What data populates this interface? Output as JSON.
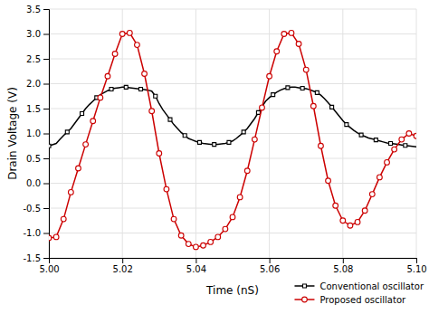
{
  "chart_data": {
    "type": "line",
    "xlabel": "Time (nS)",
    "ylabel": "Drain Voltage (V)",
    "xlim": [
      5.0,
      5.1
    ],
    "ylim": [
      -1.5,
      3.5
    ],
    "xticks": [
      {
        "value": 5.0,
        "label": "5.00"
      },
      5.02,
      5.04,
      5.06,
      5.08,
      {
        "value": 5.1,
        "label": "5.10"
      }
    ],
    "yticks": [
      -1.5,
      {
        "value": -1.0,
        "label": "-1.0"
      },
      -0.5,
      {
        "value": 0.0,
        "label": "0.0"
      },
      0.5,
      {
        "value": 1.0,
        "label": "1.0"
      },
      1.5,
      {
        "value": 2.0,
        "label": "2.0"
      },
      2.5,
      {
        "value": 3.0,
        "label": "3.0"
      },
      3.5
    ],
    "grid": true,
    "legend": "lower right",
    "series": [
      {
        "name": "Conventional oscillator",
        "color": "#000000",
        "marker": "square",
        "line_style": "solid",
        "x": [
          5.0,
          5.002,
          5.003,
          5.004,
          5.005,
          5.006,
          5.007,
          5.008,
          5.009,
          5.01,
          5.011,
          5.012,
          5.013,
          5.014,
          5.015,
          5.016,
          5.017,
          5.018,
          5.019,
          5.02,
          5.021,
          5.022,
          5.023,
          5.024,
          5.025,
          5.026,
          5.027,
          5.028,
          5.029,
          5.03,
          5.031,
          5.032,
          5.033,
          5.034,
          5.035,
          5.036,
          5.037,
          5.038,
          5.039,
          5.04,
          5.041,
          5.042,
          5.043,
          5.044,
          5.045,
          5.046,
          5.047,
          5.048,
          5.049,
          5.05,
          5.051,
          5.052,
          5.053,
          5.054,
          5.055,
          5.056,
          5.057,
          5.058,
          5.059,
          5.06,
          5.061,
          5.062,
          5.063,
          5.064,
          5.065,
          5.066,
          5.067,
          5.068,
          5.069,
          5.07,
          5.071,
          5.072,
          5.073,
          5.074,
          5.075,
          5.076,
          5.077,
          5.078,
          5.079,
          5.08,
          5.081,
          5.082,
          5.083,
          5.084,
          5.085,
          5.086,
          5.087,
          5.088,
          5.089,
          5.09,
          5.091,
          5.092,
          5.093,
          5.094,
          5.095,
          5.096,
          5.097,
          5.098,
          5.099,
          5.1
        ],
        "values": [
          0.75,
          0.8,
          0.88,
          0.96,
          1.03,
          1.1,
          1.2,
          1.3,
          1.4,
          1.5,
          1.58,
          1.65,
          1.72,
          1.78,
          1.82,
          1.86,
          1.89,
          1.91,
          1.92,
          1.93,
          1.93,
          1.92,
          1.91,
          1.9,
          1.89,
          1.88,
          1.87,
          1.85,
          1.75,
          1.6,
          1.48,
          1.38,
          1.28,
          1.18,
          1.1,
          1.02,
          0.96,
          0.9,
          0.87,
          0.84,
          0.82,
          0.8,
          0.79,
          0.78,
          0.78,
          0.78,
          0.79,
          0.8,
          0.82,
          0.85,
          0.9,
          0.96,
          1.03,
          1.1,
          1.2,
          1.3,
          1.42,
          1.54,
          1.65,
          1.72,
          1.78,
          1.83,
          1.87,
          1.9,
          1.92,
          1.93,
          1.93,
          1.92,
          1.91,
          1.9,
          1.88,
          1.85,
          1.82,
          1.77,
          1.7,
          1.62,
          1.53,
          1.44,
          1.35,
          1.26,
          1.18,
          1.12,
          1.06,
          1.01,
          0.97,
          0.94,
          0.91,
          0.89,
          0.87,
          0.85,
          0.83,
          0.81,
          0.8,
          0.79,
          0.78,
          0.77,
          0.76,
          0.75,
          0.74,
          0.73
        ]
      },
      {
        "name": "Proposed oscillator",
        "color": "#cc0000",
        "marker": "circle",
        "line_style": "solid",
        "x": [
          5.0,
          5.002,
          5.004,
          5.006,
          5.008,
          5.01,
          5.012,
          5.014,
          5.016,
          5.018,
          5.02,
          5.022,
          5.024,
          5.026,
          5.028,
          5.03,
          5.032,
          5.034,
          5.036,
          5.038,
          5.04,
          5.042,
          5.044,
          5.046,
          5.048,
          5.05,
          5.052,
          5.054,
          5.056,
          5.058,
          5.06,
          5.062,
          5.064,
          5.066,
          5.068,
          5.07,
          5.072,
          5.074,
          5.076,
          5.078,
          5.08,
          5.082,
          5.084,
          5.086,
          5.088,
          5.09,
          5.092,
          5.094,
          5.096,
          5.098,
          5.1
        ],
        "values": [
          -1.1,
          -1.08,
          -0.72,
          -0.18,
          0.3,
          0.78,
          1.25,
          1.72,
          2.15,
          2.6,
          3.0,
          3.02,
          2.78,
          2.2,
          1.45,
          0.6,
          -0.12,
          -0.72,
          -1.05,
          -1.22,
          -1.28,
          -1.25,
          -1.18,
          -1.08,
          -0.92,
          -0.68,
          -0.28,
          0.25,
          0.88,
          1.52,
          2.15,
          2.65,
          3.0,
          3.02,
          2.8,
          2.28,
          1.55,
          0.75,
          0.05,
          -0.45,
          -0.75,
          -0.85,
          -0.78,
          -0.55,
          -0.22,
          0.12,
          0.42,
          0.68,
          0.88,
          1.0,
          0.95
        ]
      }
    ]
  }
}
